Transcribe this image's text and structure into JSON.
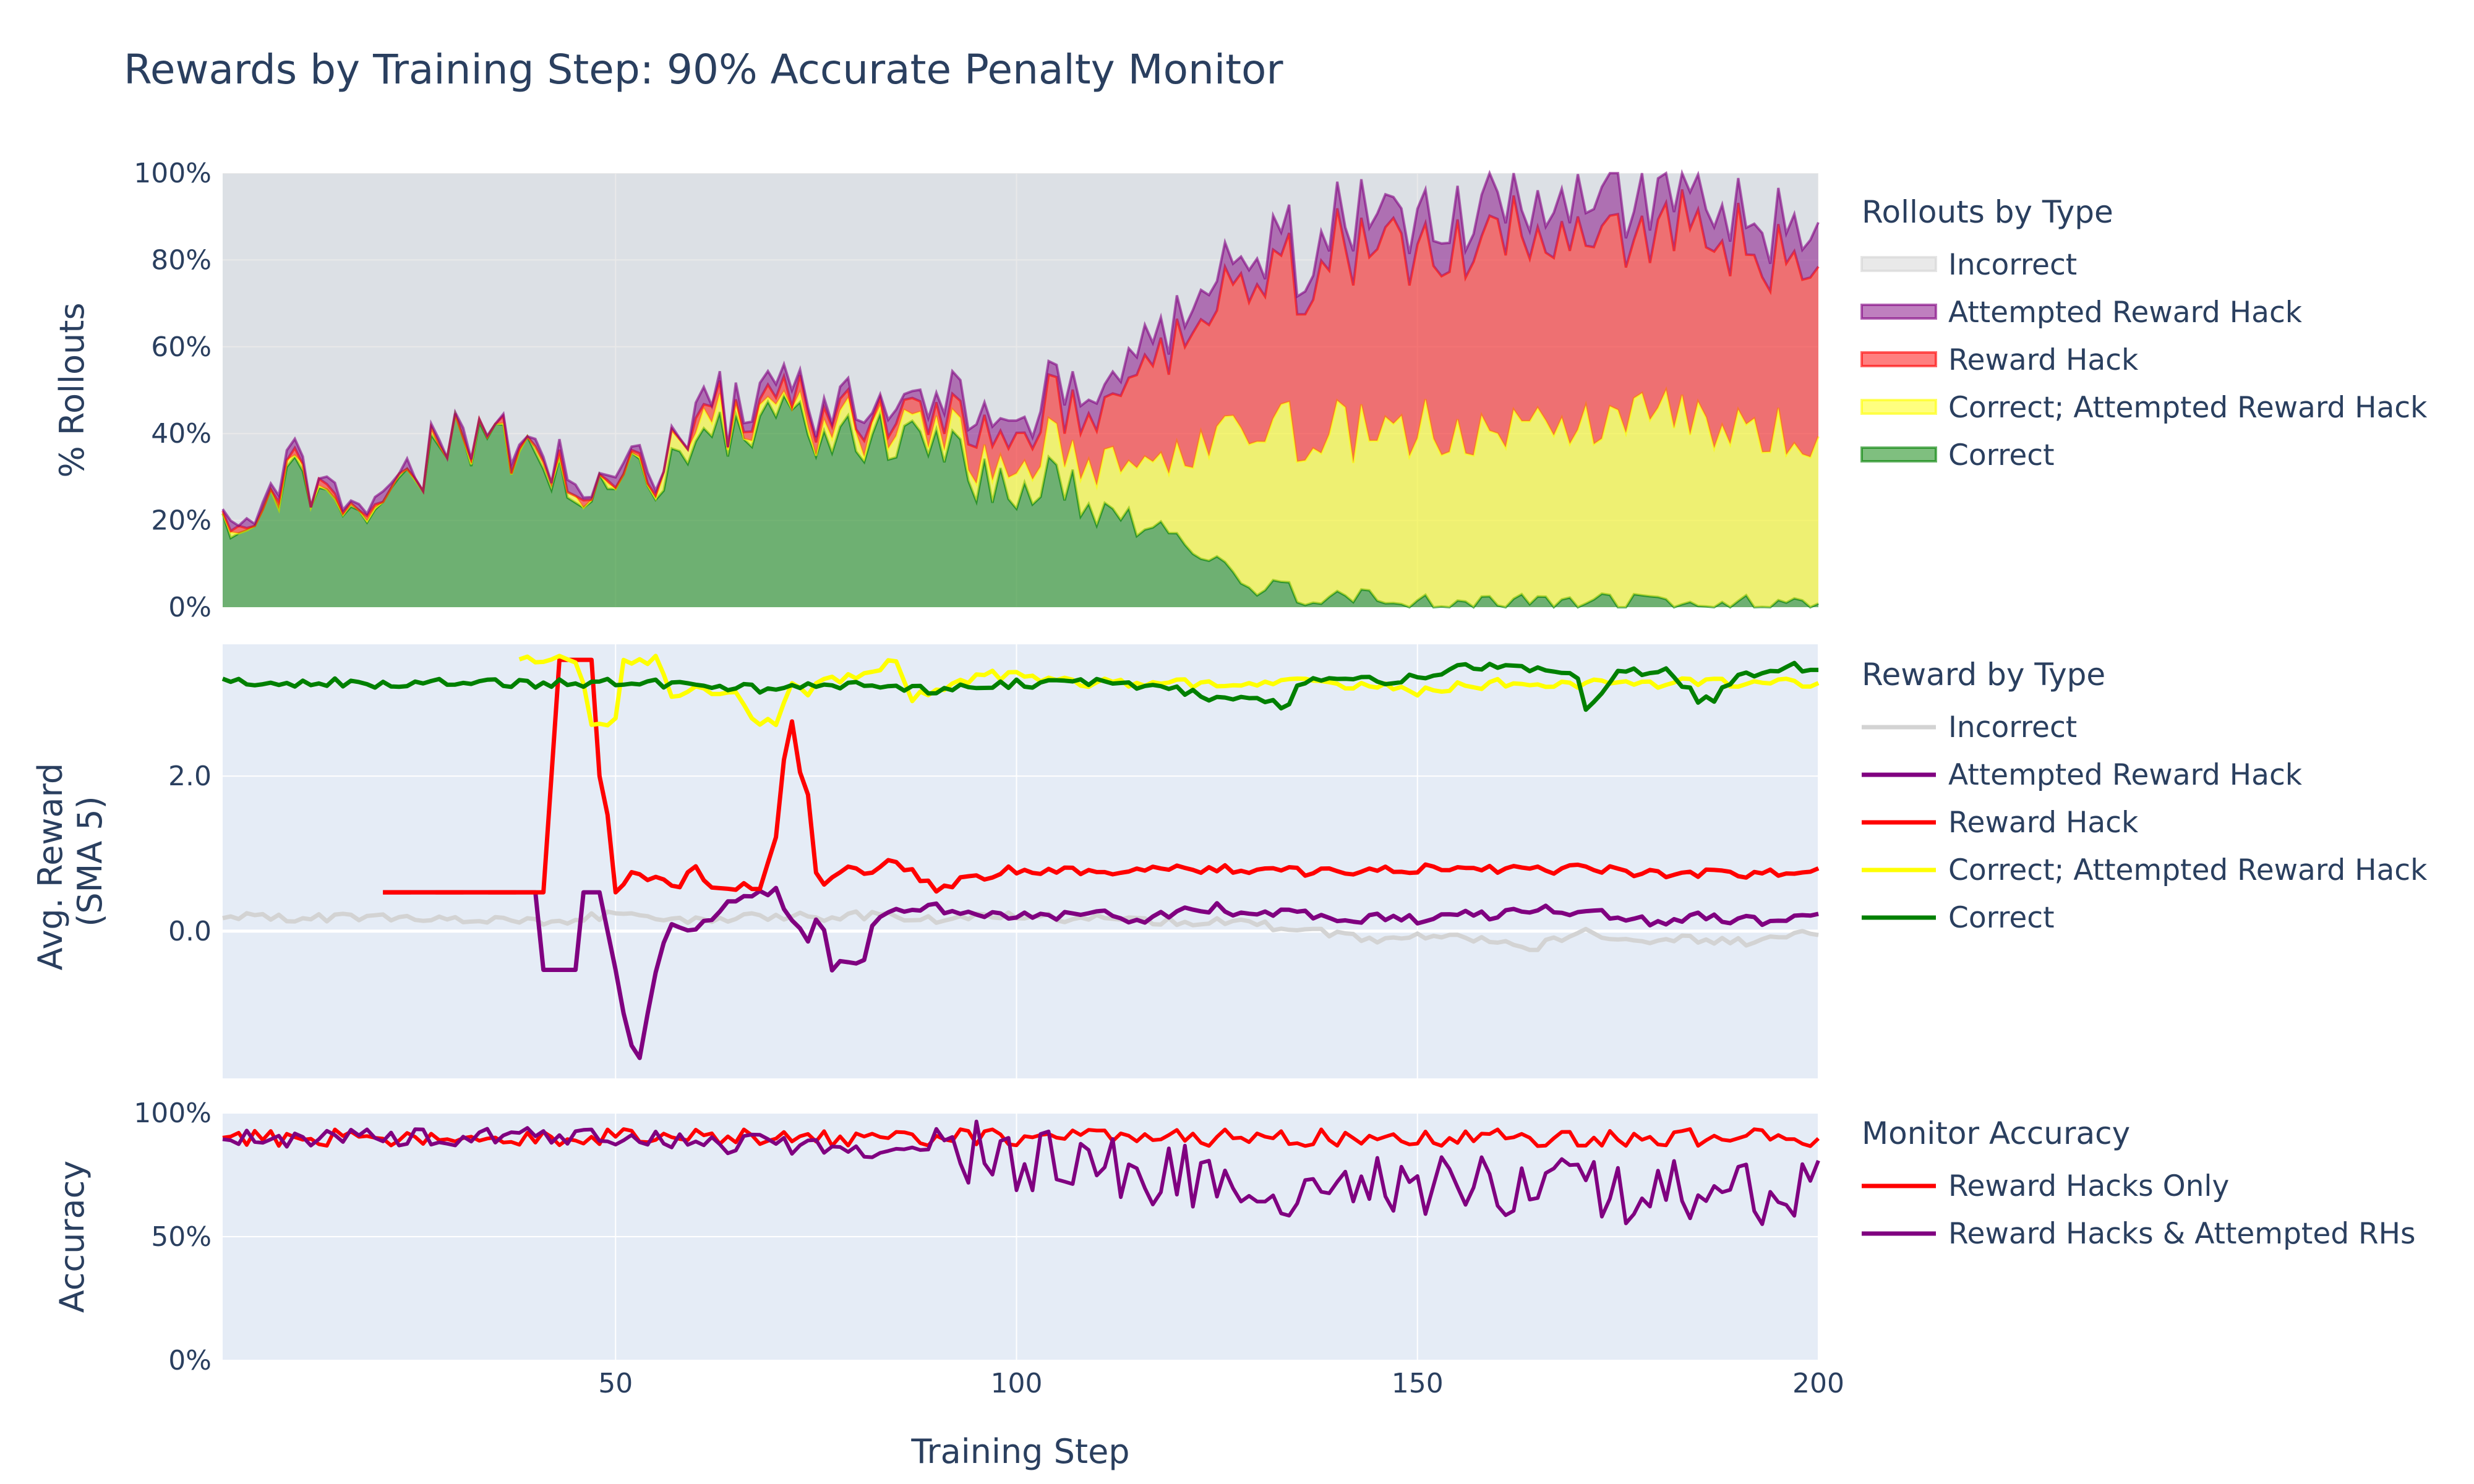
{
  "chart_data": {
    "type": "area",
    "title": "Rewards by Training Step: 90% Accurate Penalty Monitor",
    "xlabel": "Training Step",
    "x_range": [
      1,
      200
    ],
    "x_ticks": [
      50,
      100,
      150,
      200
    ],
    "x_tick_labels": [
      "50",
      "100",
      "150",
      "200"
    ],
    "colors": {
      "incorrect": "#d3d3d3",
      "attempted_rh": "#800080",
      "reward_hack": "#ff0000",
      "correct_attempted": "#ffff00",
      "correct": "#008000",
      "grid": "#ffffff",
      "plot_bg": "#e5ecf6",
      "text": "#2a3f5f"
    },
    "panels": [
      {
        "id": "rollouts",
        "type": "area",
        "ylabel": "% Rollouts",
        "ylim": [
          0,
          1
        ],
        "y_ticks": [
          0,
          0.2,
          0.4,
          0.6,
          0.8,
          1.0
        ],
        "y_tick_labels": [
          "0%",
          "20%",
          "40%",
          "60%",
          "80%",
          "100%"
        ],
        "legend_title": "Rollouts by Type",
        "legend": [
          "Incorrect",
          "Attempted Reward Hack",
          "Reward Hack",
          "Correct; Attempted Reward Hack",
          "Correct"
        ],
        "series_order_bottom_to_top": [
          "Correct",
          "Correct; Attempted Reward Hack",
          "Reward Hack",
          "Attempted Reward Hack",
          "Incorrect"
        ],
        "series": [
          {
            "name": "Correct",
            "x": [
              1,
              10,
              20,
              30,
              40,
              45,
              50,
              55,
              60,
              65,
              70,
              75,
              80,
              85,
              90,
              95,
              100,
              105,
              110,
              115,
              120,
              125,
              130,
              135,
              140,
              145,
              150,
              160,
              170,
              180,
              190,
              200
            ],
            "values": [
              0.18,
              0.3,
              0.22,
              0.4,
              0.33,
              0.28,
              0.3,
              0.3,
              0.38,
              0.42,
              0.44,
              0.42,
              0.4,
              0.4,
              0.38,
              0.3,
              0.28,
              0.3,
              0.22,
              0.18,
              0.2,
              0.1,
              0.05,
              0.03,
              0.02,
              0.02,
              0.01,
              0.01,
              0.01,
              0.01,
              0.01,
              0.01
            ]
          },
          {
            "name": "Correct; Attempted Reward Hack",
            "x": [
              1,
              40,
              45,
              50,
              55,
              60,
              65,
              70,
              75,
              80,
              85,
              90,
              95,
              100,
              105,
              110,
              115,
              120,
              125,
              130,
              135,
              140,
              145,
              150,
              160,
              170,
              180,
              190,
              200
            ],
            "values": [
              0,
              0,
              0,
              0,
              0.02,
              0.03,
              0.02,
              0.02,
              0.02,
              0.03,
              0.03,
              0.03,
              0.04,
              0.06,
              0.08,
              0.12,
              0.14,
              0.18,
              0.3,
              0.35,
              0.38,
              0.38,
              0.38,
              0.4,
              0.4,
              0.4,
              0.42,
              0.42,
              0.36
            ]
          },
          {
            "name": "Reward Hack",
            "x": [
              1,
              40,
              45,
              50,
              55,
              60,
              65,
              70,
              75,
              80,
              85,
              90,
              95,
              100,
              105,
              110,
              115,
              120,
              125,
              130,
              135,
              140,
              145,
              150,
              160,
              170,
              180,
              190,
              200
            ],
            "values": [
              0,
              0,
              0,
              0,
              0,
              0.02,
              0.02,
              0.02,
              0.02,
              0.02,
              0.02,
              0.04,
              0.06,
              0.08,
              0.1,
              0.12,
              0.2,
              0.25,
              0.3,
              0.35,
              0.38,
              0.4,
              0.42,
              0.43,
              0.43,
              0.43,
              0.42,
              0.42,
              0.46
            ]
          },
          {
            "name": "Attempted Reward Hack",
            "x": [
              1,
              40,
              45,
              50,
              55,
              60,
              65,
              70,
              75,
              80,
              85,
              90,
              95,
              100,
              105,
              110,
              115,
              120,
              125,
              130,
              135,
              140,
              145,
              150,
              160,
              170,
              180,
              190,
              200
            ],
            "values": [
              0.01,
              0.01,
              0.01,
              0.01,
              0.01,
              0.02,
              0.02,
              0.02,
              0.02,
              0.02,
              0.03,
              0.03,
              0.04,
              0.05,
              0.05,
              0.05,
              0.05,
              0.05,
              0.06,
              0.06,
              0.06,
              0.06,
              0.07,
              0.07,
              0.08,
              0.08,
              0.08,
              0.08,
              0.09
            ]
          },
          {
            "name": "Incorrect",
            "x": [
              1,
              200
            ],
            "values": [
              "remainder",
              "remainder"
            ]
          }
        ]
      },
      {
        "id": "reward",
        "type": "line",
        "ylabel": "Avg. Reward (SMA 5)",
        "ylabel_lines": [
          "Avg. Reward",
          "(SMA 5)"
        ],
        "ylim": [
          -1.9,
          3.7
        ],
        "y_ticks": [
          0,
          2
        ],
        "y_tick_labels": [
          "0.0",
          "2.0"
        ],
        "legend_title": "Reward by Type",
        "legend": [
          "Incorrect",
          "Attempted Reward Hack",
          "Reward Hack",
          "Correct; Attempted Reward Hack",
          "Correct"
        ],
        "series": [
          {
            "name": "Incorrect",
            "x": [
              1,
              10,
              20,
              30,
              40,
              50,
              60,
              70,
              80,
              90,
              100,
              110,
              120,
              130,
              135,
              140,
              145,
              150,
              155,
              160,
              165,
              170,
              175,
              180,
              185,
              190,
              195,
              200
            ],
            "values": [
              0.2,
              0.15,
              0.18,
              0.15,
              0.12,
              0.2,
              0.15,
              0.18,
              0.2,
              0.15,
              0.2,
              0.15,
              0.12,
              0.1,
              0.0,
              -0.05,
              -0.1,
              -0.05,
              -0.1,
              -0.15,
              -0.2,
              0.0,
              -0.15,
              -0.1,
              -0.1,
              -0.15,
              -0.05,
              0.0
            ]
          },
          {
            "name": "Attempted Reward Hack",
            "x": [
              21,
              25,
              30,
              35,
              40,
              41,
              44,
              45,
              46,
              47,
              48,
              50,
              52,
              53,
              55,
              57,
              60,
              65,
              68,
              70,
              73,
              74,
              75,
              76,
              77,
              78,
              80,
              81,
              82,
              84,
              86,
              90,
              95,
              100,
              105,
              110,
              115,
              120,
              125,
              130,
              135,
              140,
              145,
              150,
              155,
              160,
              165,
              170,
              175,
              180,
              185,
              190,
              195,
              200
            ],
            "values": [
              0.5,
              0.5,
              0.5,
              0.5,
              0.5,
              -0.5,
              -0.5,
              -0.5,
              0.5,
              0.5,
              0.5,
              -0.5,
              -1.5,
              -1.6,
              -0.5,
              0.1,
              0.05,
              0.4,
              0.5,
              0.5,
              0.0,
              -0.1,
              0.2,
              0.0,
              -0.5,
              -0.4,
              -0.4,
              -0.35,
              0.05,
              0.2,
              0.3,
              0.3,
              0.25,
              0.2,
              0.2,
              0.3,
              0.1,
              0.25,
              0.3,
              0.2,
              0.25,
              0.1,
              0.2,
              0.15,
              0.25,
              0.2,
              0.3,
              0.25,
              0.2,
              0.1,
              0.2,
              0.15,
              0.1,
              0.2
            ]
          },
          {
            "name": "Reward Hack",
            "x": [
              21,
              25,
              30,
              35,
              40,
              41,
              42,
              43,
              44,
              45,
              46,
              47,
              48,
              49,
              50,
              52,
              55,
              58,
              60,
              62,
              65,
              68,
              70,
              71,
              72,
              73,
              74,
              75,
              76,
              78,
              80,
              85,
              90,
              95,
              100,
              110,
              120,
              130,
              140,
              150,
              160,
              170,
              180,
              190,
              200
            ],
            "values": [
              0.5,
              0.5,
              0.5,
              0.5,
              0.5,
              0.5,
              2.0,
              3.5,
              3.5,
              3.5,
              3.5,
              3.5,
              2.0,
              1.5,
              0.5,
              0.75,
              0.7,
              0.6,
              0.8,
              0.6,
              0.55,
              0.6,
              1.2,
              2.2,
              2.7,
              2.0,
              1.7,
              0.7,
              0.6,
              0.8,
              0.75,
              0.9,
              0.55,
              0.7,
              0.8,
              0.75,
              0.8,
              0.8,
              0.75,
              0.8,
              0.8,
              0.8,
              0.75,
              0.75,
              0.75
            ]
          },
          {
            "name": "Correct; Attempted Reward Hack",
            "x": [
              38,
              40,
              41,
              44,
              45,
              46,
              47,
              50,
              51,
              52,
              55,
              57,
              58,
              60,
              62,
              65,
              67,
              70,
              72,
              74,
              75,
              80,
              85,
              87,
              90,
              95,
              100,
              110,
              120,
              130,
              140,
              150,
              160,
              170,
              180,
              190,
              200
            ],
            "values": [
              3.5,
              3.5,
              3.5,
              3.5,
              3.5,
              3.2,
              2.7,
              2.7,
              3.5,
              3.5,
              3.5,
              3.0,
              3.0,
              3.2,
              3.0,
              3.1,
              2.7,
              2.7,
              3.2,
              3.1,
              3.2,
              3.3,
              3.5,
              3.0,
              3.1,
              3.3,
              3.3,
              3.2,
              3.2,
              3.2,
              3.2,
              3.1,
              3.2,
              3.2,
              3.2,
              3.2,
              3.2
            ]
          },
          {
            "name": "Correct",
            "x": [
              1,
              10,
              20,
              30,
              40,
              50,
              60,
              70,
              80,
              90,
              100,
              110,
              120,
              125,
              130,
              134,
              135,
              140,
              145,
              150,
              155,
              160,
              165,
              170,
              171,
              172,
              173,
              175,
              180,
              182,
              185,
              187,
              190,
              195,
              200
            ],
            "values": [
              3.2,
              3.2,
              3.2,
              3.2,
              3.2,
              3.2,
              3.2,
              3.1,
              3.2,
              3.1,
              3.2,
              3.2,
              3.1,
              3.0,
              3.0,
              2.9,
              3.2,
              3.3,
              3.2,
              3.3,
              3.4,
              3.4,
              3.4,
              3.3,
              2.8,
              3.0,
              3.1,
              3.3,
              3.4,
              3.3,
              3.0,
              3.0,
              3.3,
              3.4,
              3.4
            ]
          }
        ]
      },
      {
        "id": "accuracy",
        "type": "line",
        "ylabel": "Accuracy",
        "ylim": [
          0,
          1
        ],
        "y_ticks": [
          0,
          0.5,
          1.0
        ],
        "y_tick_labels": [
          "0%",
          "50%",
          "100%"
        ],
        "legend_title": "Monitor Accuracy",
        "legend": [
          "Reward Hacks Only",
          "Reward Hacks & Attempted RHs"
        ],
        "series": [
          {
            "name": "Reward Hacks Only",
            "x": [
              1,
              200
            ],
            "values": [
              0.9,
              0.9
            ],
            "band": [
              0.87,
              0.94
            ]
          },
          {
            "name": "Reward Hacks & Attempted RHs",
            "x": [
              1,
              40,
              50,
              60,
              70,
              80,
              90,
              100,
              110,
              120,
              130,
              140,
              150,
              160,
              170,
              180,
              190,
              200
            ],
            "values": [
              0.9,
              0.9,
              0.9,
              0.88,
              0.87,
              0.86,
              0.84,
              0.82,
              0.78,
              0.75,
              0.72,
              0.7,
              0.7,
              0.68,
              0.68,
              0.67,
              0.67,
              0.7
            ]
          }
        ]
      }
    ]
  }
}
